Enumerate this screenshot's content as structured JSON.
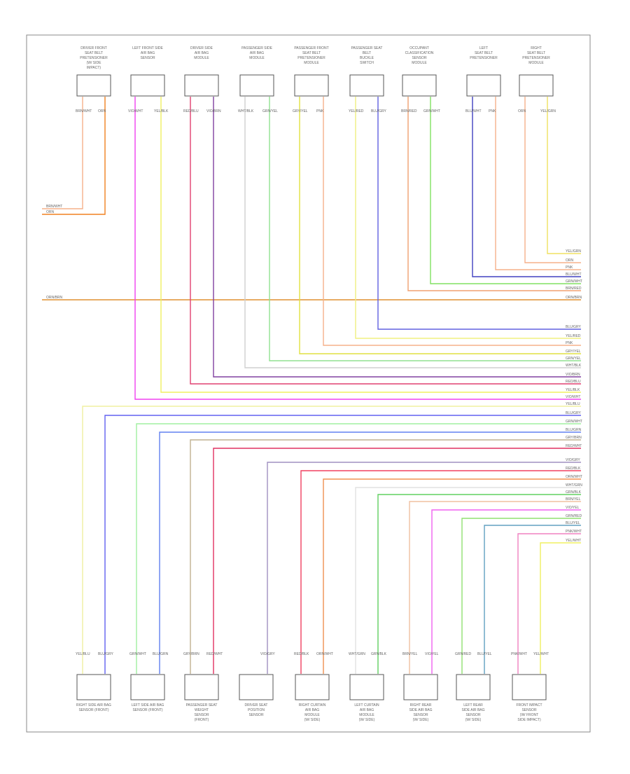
{
  "top_components": [
    [
      "DRIVER FRONT",
      "SEAT BELT",
      "PRETENSIONER",
      "(W/ SIDE",
      "IMPACT)"
    ],
    [
      "LEFT FRONT SIDE",
      "AIR BAG",
      "SENSOR"
    ],
    [
      "DRIVER SIDE",
      "AIR BAG",
      "MODULE"
    ],
    [
      "PASSENGER SIDE",
      "AIR BAG",
      "MODULE"
    ],
    [
      "PASSENGER FRONT",
      "SEAT BELT",
      "PRETENSIONER",
      "MODULE"
    ],
    [
      "PASSENGER SEAT",
      "BELT",
      "BUCKLE",
      "SWITCH"
    ],
    [
      "OCCUPANT",
      "CLASSIFICATION",
      "SENSOR",
      "MODULE"
    ],
    [
      "LEFT",
      "SEAT BELT",
      "PRETENSIONER"
    ],
    [
      "RIGHT",
      "SEAT BELT",
      "PRETENSIONER",
      "MODULE"
    ]
  ],
  "bottom_components": [
    [
      "RIGHT SIDE AIR BAG",
      "SENSOR (FRONT)"
    ],
    [
      "LEFT SIDE AIR BAG",
      "SENSOR (FRONT)"
    ],
    [
      "PASSENGER SEAT",
      "WEIGHT",
      "SENSOR",
      "(FRONT)"
    ],
    [
      "DRIVER SEAT",
      "POSITION",
      "SENSOR"
    ],
    [
      "RIGHT CURTAIN",
      "AIR BAG",
      "MODULE",
      "(W/ SIDE)"
    ],
    [
      "LEFT CURTAIN",
      "AIR BAG",
      "MODULE",
      "(W/ SIDE)"
    ],
    [
      "RIGHT REAR",
      "SIDE AIR BAG",
      "SENSOR",
      "(W/ SIDE)"
    ],
    [
      "LEFT REAR",
      "SIDE AIR BAG",
      "SENSOR",
      "(W/ SIDE)"
    ],
    [
      "FRONT IMPACT",
      "SENSOR",
      "(W/ FRONT",
      "SIDE IMPACT)"
    ]
  ],
  "wires": [
    {
      "code": "BRN/WHT",
      "color": "#f5b08a"
    },
    {
      "code": "ORN",
      "color": "#f08020"
    },
    {
      "code": "YEL/GRN",
      "color": "#f0e060"
    },
    {
      "code": "ORN",
      "color": "#f5b08a"
    },
    {
      "code": "PNK",
      "color": "#f5b08a"
    },
    {
      "code": "BLU/WHT",
      "color": "#4040c0"
    },
    {
      "code": "GRN/WHT",
      "color": "#80e060"
    },
    {
      "code": "BRN/RED",
      "color": "#f0a070"
    },
    {
      "code": "ORN/BRN",
      "color": "#e09030"
    },
    {
      "code": "BLU/GRY",
      "color": "#6060e0"
    },
    {
      "code": "YEL/RED",
      "color": "#f0f080"
    },
    {
      "code": "PNK",
      "color": "#f5b08a"
    },
    {
      "code": "GRY/YEL",
      "color": "#e0e040"
    },
    {
      "code": "GRN/YEL",
      "color": "#90e090"
    },
    {
      "code": "WHT/BLK",
      "color": "#d0d0d0"
    },
    {
      "code": "VIO/BRN",
      "color": "#8040a0"
    },
    {
      "code": "RED/BLU",
      "color": "#e04070"
    },
    {
      "code": "YEL/BLK",
      "color": "#f0f060"
    },
    {
      "code": "VIO/WHT",
      "color": "#f040f0"
    },
    {
      "code": "YEL/BLU",
      "color": "#f0f0a0"
    },
    {
      "code": "BLU/GRY",
      "color": "#6060f0"
    },
    {
      "code": "GRN/WHT",
      "color": "#a0f0a0"
    },
    {
      "code": "BLU/GRN",
      "color": "#6080f0"
    },
    {
      "code": "GRY/BRN",
      "color": "#c0b090"
    },
    {
      "code": "RED/WHT",
      "color": "#e03060"
    },
    {
      "code": "VIO/GRY",
      "color": "#a090c0"
    },
    {
      "code": "RED/BLK",
      "color": "#f04060"
    },
    {
      "code": "ORN/WHT",
      "color": "#f09050"
    },
    {
      "code": "WHT/GRN",
      "color": "#e0e0e0"
    },
    {
      "code": "GRN/BLK",
      "color": "#60d060"
    },
    {
      "code": "BRN/YEL",
      "color": "#f0c0a0"
    },
    {
      "code": "VIO/YEL",
      "color": "#f060f0"
    },
    {
      "code": "GRN/RED",
      "color": "#90e070"
    },
    {
      "code": "BLU/YEL",
      "color": "#60a0c0"
    },
    {
      "code": "PNK/WHT",
      "color": "#f080c0"
    },
    {
      "code": "YEL/WHT",
      "color": "#f0f060"
    }
  ]
}
